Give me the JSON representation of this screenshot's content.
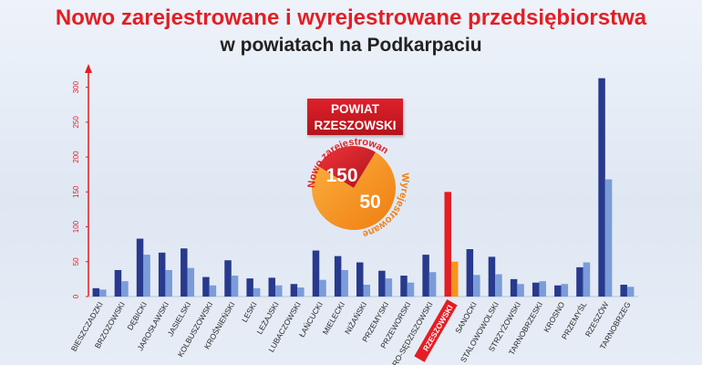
{
  "title": "Nowo zarejestrowane i wyrejestrowane przedsiębiorstwa",
  "subtitle": "w powiatach na Podkarpaciu",
  "colors": {
    "registered": "#283a8e",
    "deregistered": "#7b9cd9",
    "highlight_registered": "#e31e24",
    "highlight_deregistered": "#f7941d",
    "accent": "#e31e24"
  },
  "badge": {
    "line1": "POWIAT",
    "line2": "RZESZOWSKI",
    "registered_label": "Nowo zarejestrowane",
    "deregistered_label": "Wyrejestrowane",
    "registered_value": 150,
    "deregistered_value": 50
  },
  "chart_data": {
    "type": "bar",
    "ylim": [
      0,
      310
    ],
    "yticks": [
      0,
      50,
      100,
      150,
      200,
      250,
      300
    ],
    "grid": false,
    "highlight": "RZESZOWSKI",
    "categories": [
      "BIESZCZADZKI",
      "BRZOZOWSKI",
      "DĘBICKI",
      "JAROSŁAWSKI",
      "JASIELSKI",
      "KOLBUSZOWSKI",
      "KROŚNIEŃSKI",
      "LESKI",
      "LEŻAJSKI",
      "LUBACZOWSKI",
      "ŁAŃCUCKI",
      "MIELECKI",
      "NIŻAŃSKI",
      "PRZEMYSKI",
      "PRZEWORSKI",
      "RO-SĘDZISZOWSKI",
      "RZESZOWSKI",
      "SANOCKI",
      "STALOWOWOLSKI",
      "STRZYŻOWSKI",
      "TARNOBRZESKI",
      "KROSNO",
      "PRZEMYŚL",
      "RZESZÓW",
      "TARNOBRZEG"
    ],
    "series": [
      {
        "values": [
          12,
          38,
          83,
          63,
          69,
          28,
          52,
          26,
          27,
          18,
          66,
          58,
          49,
          37,
          30,
          60,
          150,
          68,
          57,
          25,
          20,
          16,
          42,
          313,
          17
        ]
      },
      {
        "values": [
          10,
          22,
          60,
          38,
          41,
          16,
          30,
          12,
          16,
          13,
          24,
          38,
          17,
          26,
          20,
          35,
          50,
          31,
          32,
          18,
          22,
          18,
          49,
          168,
          14
        ]
      }
    ]
  }
}
